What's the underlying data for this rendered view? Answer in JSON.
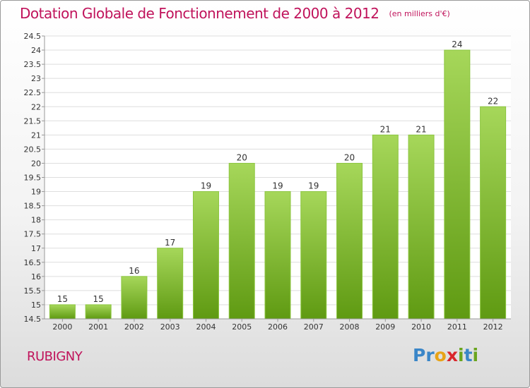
{
  "header": {
    "title": "Dotation Globale de Fonctionnement de 2000 à 2012",
    "subtitle": "(en milliers d'€)"
  },
  "footer": {
    "commune": "RUBIGNY",
    "logo_text": "Proxiti",
    "logo_letters": [
      {
        "ch": "P",
        "color": "#3a86c8"
      },
      {
        "ch": "r",
        "color": "#3a86c8"
      },
      {
        "ch": "o",
        "color": "#e8a317"
      },
      {
        "ch": "x",
        "color": "#d9262c"
      },
      {
        "ch": "i",
        "color": "#6aa51e"
      },
      {
        "ch": "t",
        "color": "#3a86c8"
      },
      {
        "ch": "i",
        "color": "#6aa51e"
      }
    ]
  },
  "chart_data": {
    "type": "bar",
    "title": "Dotation Globale de Fonctionnement de 2000 à 2012",
    "subtitle": "(en milliers d'€)",
    "categories": [
      "2000",
      "2001",
      "2002",
      "2003",
      "2004",
      "2005",
      "2006",
      "2007",
      "2008",
      "2009",
      "2010",
      "2011",
      "2012"
    ],
    "values": [
      15,
      15,
      16,
      17,
      19,
      20,
      19,
      19,
      20,
      21,
      21,
      24,
      22
    ],
    "data_labels": [
      "15",
      "15",
      "16",
      "17",
      "19",
      "20",
      "19",
      "19",
      "20",
      "21",
      "21",
      "24",
      "22"
    ],
    "ylim": [
      14.5,
      24.5
    ],
    "yticks": [
      14.5,
      15,
      15.5,
      16,
      16.5,
      17,
      17.5,
      18,
      18.5,
      19,
      19.5,
      20,
      20.5,
      21,
      21.5,
      22,
      22.5,
      23,
      23.5,
      24,
      24.5
    ],
    "ytick_labels": [
      "14.5",
      "15",
      "15.5",
      "16",
      "16.5",
      "17",
      "17.5",
      "18",
      "18.5",
      "19",
      "19.5",
      "20",
      "20.5",
      "21",
      "21.5",
      "22",
      "22.5",
      "23",
      "23.5",
      "24",
      "24.5"
    ],
    "grid": "horizontal",
    "colors": {
      "bar_top": "#a6d75a",
      "bar_bottom": "#5f9a12",
      "text": "#c0135b",
      "grid": "#dedede"
    }
  }
}
